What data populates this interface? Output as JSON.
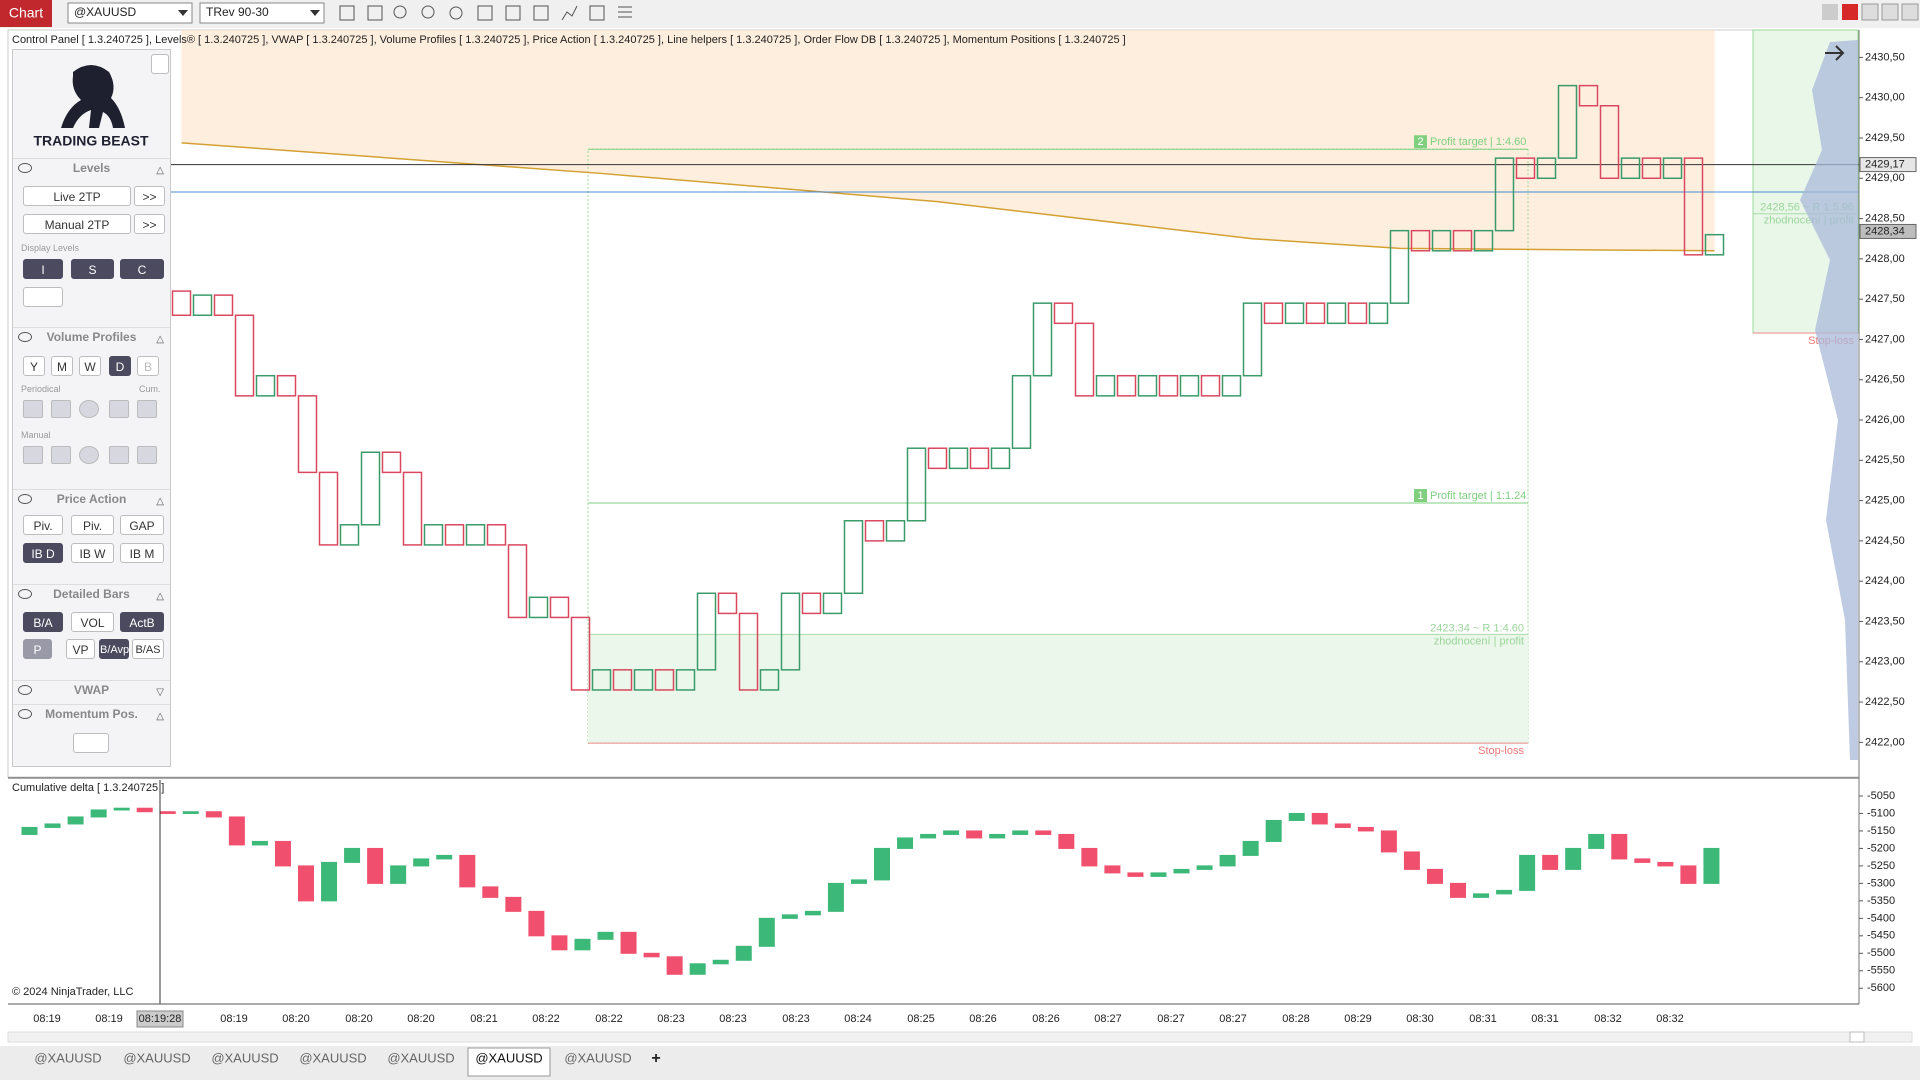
{
  "toolbar": {
    "title": "Chart",
    "instrument": "@XAUUSD",
    "bar_type": "TRev 90-30"
  },
  "header": "Control Panel   [ 1.3.240725 ], Levels®   [ 1.3.240725 ], VWAP   [ 1.3.240725 ], Volume Profiles   [ 1.3.240725 ], Price Action   [ 1.3.240725 ], Line helpers   [ 1.3.240725 ], Order Flow DB   [ 1.3.240725 ], Momentum Positions   [ 1.3.240725 ]",
  "control_panel": {
    "logo": "TRADING BEAST",
    "levels": {
      "title": "Levels",
      "live": "Live 2TP",
      "manual": "Manual 2TP",
      "more": ">>",
      "display_label": "Display Levels",
      "display_buttons": [
        "I",
        "S",
        "C"
      ]
    },
    "volume_profiles": {
      "title": "Volume Profiles",
      "buttons": [
        "Y",
        "M",
        "W",
        "D",
        "B"
      ],
      "periodical": "Periodical",
      "cum": "Cum.",
      "manual": "Manual"
    },
    "price_action": {
      "title": "Price Action",
      "row1": [
        "Piv.",
        "Piv.",
        "GAP"
      ],
      "row2": [
        "IB D",
        "IB W",
        "IB M"
      ]
    },
    "detailed_bars": {
      "title": "Detailed Bars",
      "row1": [
        "B/A",
        "VOL",
        "ActB"
      ],
      "row2": [
        "P",
        "VP",
        "B/Avp",
        "B/AS"
      ]
    },
    "vwap": "VWAP",
    "momentum": "Momentum Pos."
  },
  "chart_data": [
    {
      "type": "renko",
      "up_color": "#3a9a6a",
      "down_color": "#d9485f",
      "grid": false,
      "ylim": [
        2421.57,
        2430.84
      ],
      "yticks": [
        {
          "value": 2422,
          "label": "2422,00"
        },
        {
          "value": 2422.5,
          "label": "2422,50"
        },
        {
          "value": 2423,
          "label": "2423,00"
        },
        {
          "value": 2423.5,
          "label": "2423,50"
        },
        {
          "value": 2424,
          "label": "2424,00"
        },
        {
          "value": 2424.5,
          "label": "2424,50"
        },
        {
          "value": 2425,
          "label": "2425,00"
        },
        {
          "value": 2425.5,
          "label": "2425,50"
        },
        {
          "value": 2426,
          "label": "2426,00"
        },
        {
          "value": 2426.5,
          "label": "2426,50"
        },
        {
          "value": 2427,
          "label": "2427,00"
        },
        {
          "value": 2427.5,
          "label": "2427,50"
        },
        {
          "value": 2428,
          "label": "2428,00"
        },
        {
          "value": 2428.5,
          "label": "2428,50"
        },
        {
          "value": 2429,
          "label": "2429,00"
        },
        {
          "value": 2429.5,
          "label": "2429,50"
        },
        {
          "value": 2430,
          "label": "2430,00"
        },
        {
          "value": 2430.5,
          "label": "2430,50"
        }
      ],
      "open": [
        2427.6,
        2427.3,
        2427.55,
        2427.3,
        2426.3,
        2426.55,
        2426.3,
        2425.35,
        2424.45,
        2424.7,
        2425.6,
        2425.35,
        2424.45,
        2424.7,
        2424.45,
        2424.7,
        2424.45,
        2423.55,
        2423.8,
        2423.55,
        2422.65,
        2422.9,
        2422.65,
        2422.9,
        2422.65,
        2422.9,
        2423.85,
        2423.6,
        2422.65,
        2422.9,
        2423.85,
        2423.6,
        2423.85,
        2424.75,
        2424.5,
        2424.75,
        2425.65,
        2425.4,
        2425.65,
        2425.4,
        2425.65,
        2426.55,
        2427.45,
        2427.2,
        2426.3,
        2426.55,
        2426.3,
        2426.55,
        2426.3,
        2426.55,
        2426.3,
        2426.55,
        2427.45,
        2427.2,
        2427.45,
        2427.2,
        2427.45,
        2427.2,
        2427.45,
        2428.35,
        2428.1,
        2428.35,
        2428.1,
        2428.35,
        2429.25,
        2429,
        2429.25,
        2430.15,
        2429.9,
        2429,
        2429.25,
        2429,
        2429.25,
        2428.05
      ],
      "close": [
        2427.3,
        2427.55,
        2427.3,
        2426.3,
        2426.55,
        2426.3,
        2425.35,
        2424.45,
        2424.7,
        2425.6,
        2425.35,
        2424.45,
        2424.7,
        2424.45,
        2424.7,
        2424.45,
        2423.55,
        2423.8,
        2423.55,
        2422.65,
        2422.9,
        2422.65,
        2422.9,
        2422.65,
        2422.9,
        2423.85,
        2423.6,
        2422.65,
        2422.9,
        2423.85,
        2423.6,
        2423.85,
        2424.75,
        2424.5,
        2424.75,
        2425.65,
        2425.4,
        2425.65,
        2425.4,
        2425.65,
        2426.55,
        2427.45,
        2427.2,
        2426.3,
        2426.55,
        2426.3,
        2426.55,
        2426.3,
        2426.55,
        2426.3,
        2426.55,
        2427.45,
        2427.2,
        2427.45,
        2427.2,
        2427.45,
        2427.2,
        2427.45,
        2428.35,
        2428.1,
        2428.35,
        2428.1,
        2428.35,
        2429.25,
        2429,
        2429.25,
        2430.15,
        2429.9,
        2429,
        2429.25,
        2429,
        2429.25,
        2428.05,
        2428.3
      ],
      "vwap": {
        "color": "#d4a032",
        "x": [
          0,
          20,
          36,
          51,
          58,
          73
        ],
        "values": [
          2429.44,
          2429.06,
          2428.71,
          2428.25,
          2428.13,
          2428.1
        ]
      },
      "levels": [
        {
          "value": 2428.83,
          "color": "#4a8ccf"
        }
      ],
      "price_markers": [
        {
          "value": 2429.17,
          "label": "2429,17"
        },
        {
          "value": 2428.34,
          "label": "2428,34"
        }
      ],
      "positions": [
        {
          "targets": [
            {
              "badge": "2",
              "label": "Profit target | 1:4.60",
              "price": 2429.36
            },
            {
              "badge": "1",
              "label": "Profit target | 1:1.24",
              "price": 2424.97
            }
          ],
          "profit": {
            "label": "2423,34 ~ R 1:4.60",
            "note": "zhodnocení | profit",
            "price": 2423.34
          },
          "stop": {
            "label": "Stop-loss",
            "price": 2421.99
          }
        },
        {
          "targets": [],
          "profit": {
            "label": "2428,56 ~ R 1:5.96",
            "note": "zhodnocení | profit",
            "price": 2428.56
          },
          "stop": {
            "label": "Stop-loss",
            "price": 2427.08
          }
        }
      ]
    },
    {
      "type": "candlestick",
      "title": "Cumulative delta   [ 1.3.240725 ]",
      "up_color": "#3cb878",
      "down_color": "#f0506e",
      "grid": false,
      "ylim": [
        -5645,
        -5010
      ],
      "yticks": [
        -5050,
        -5100,
        -5150,
        -5200,
        -5250,
        -5300,
        -5350,
        -5400,
        -5450,
        -5500,
        -5550,
        -5600
      ],
      "open": [
        -5160,
        -5140,
        -5130,
        -5110,
        -5090,
        -5085,
        -5095,
        -5100,
        -5095,
        -5110,
        -5190,
        -5180,
        -5250,
        -5350,
        -5240,
        -5200,
        -5300,
        -5250,
        -5230,
        -5220,
        -5310,
        -5340,
        -5380,
        -5450,
        -5490,
        -5460,
        -5440,
        -5500,
        -5510,
        -5560,
        -5530,
        -5520,
        -5480,
        -5400,
        -5390,
        -5380,
        -5300,
        -5290,
        -5200,
        -5170,
        -5160,
        -5150,
        -5170,
        -5160,
        -5150,
        -5160,
        -5200,
        -5250,
        -5270,
        -5280,
        -5270,
        -5260,
        -5250,
        -5220,
        -5180,
        -5120,
        -5100,
        -5130,
        -5140,
        -5150,
        -5210,
        -5260,
        -5300,
        -5340,
        -5330,
        -5320,
        -5220,
        -5260,
        -5200,
        -5160,
        -5230,
        -5240,
        -5250,
        -5300
      ],
      "close": [
        -5140,
        -5130,
        -5110,
        -5090,
        -5085,
        -5095,
        -5100,
        -5095,
        -5110,
        -5190,
        -5180,
        -5250,
        -5350,
        -5240,
        -5200,
        -5300,
        -5250,
        -5230,
        -5220,
        -5310,
        -5340,
        -5380,
        -5450,
        -5490,
        -5460,
        -5440,
        -5500,
        -5510,
        -5560,
        -5530,
        -5520,
        -5480,
        -5400,
        -5390,
        -5380,
        -5300,
        -5290,
        -5200,
        -5170,
        -5160,
        -5150,
        -5170,
        -5160,
        -5150,
        -5160,
        -5200,
        -5250,
        -5270,
        -5280,
        -5270,
        -5260,
        -5250,
        -5220,
        -5180,
        -5120,
        -5100,
        -5130,
        -5140,
        -5150,
        -5210,
        -5260,
        -5300,
        -5340,
        -5330,
        -5320,
        -5220,
        -5260,
        -5200,
        -5160,
        -5230,
        -5240,
        -5250,
        -5300,
        -5200
      ]
    }
  ],
  "time_axis": {
    "labels": [
      "08:19",
      "08:19",
      "08:19:28",
      "08:19",
      "08:20",
      "08:20",
      "08:20",
      "08:21",
      "08:22",
      "08:22",
      "08:23",
      "08:23",
      "08:23",
      "08:24",
      "08:25",
      "08:26",
      "08:26",
      "08:27",
      "08:27",
      "08:27",
      "08:28",
      "08:29",
      "08:30",
      "08:31",
      "08:31",
      "08:32",
      "08:32"
    ],
    "cursor": 2
  },
  "copyright": "© 2024 NinjaTrader, LLC",
  "tabs": {
    "items": [
      "@XAUUSD",
      "@XAUUSD",
      "@XAUUSD",
      "@XAUUSD",
      "@XAUUSD",
      "@XAUUSD",
      "@XAUUSD"
    ],
    "active": 5,
    "add": "+"
  }
}
